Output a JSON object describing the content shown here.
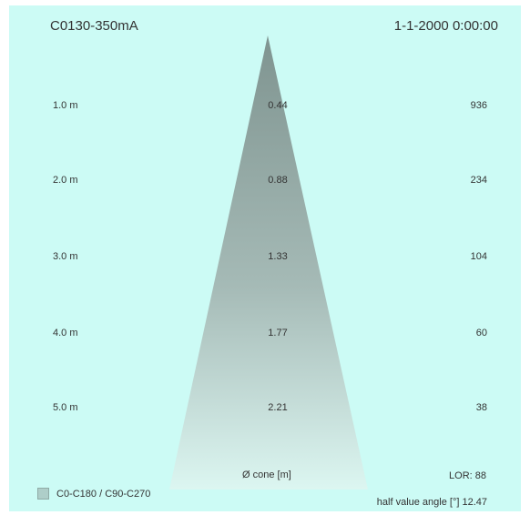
{
  "header": {
    "title": "C0130-350mA",
    "timestamp": "1-1-2000 0:00:00"
  },
  "chart_data": {
    "type": "cone",
    "rows": [
      {
        "distance": "1.0 m",
        "diameter": "0.44",
        "illuminance": "936"
      },
      {
        "distance": "2.0 m",
        "diameter": "0.88",
        "illuminance": "234"
      },
      {
        "distance": "3.0 m",
        "diameter": "1.33",
        "illuminance": "104"
      },
      {
        "distance": "4.0 m",
        "diameter": "1.77",
        "illuminance": "60"
      },
      {
        "distance": "5.0 m",
        "diameter": "2.21",
        "illuminance": "38"
      }
    ],
    "cone_axis_label": "Ø cone [m]",
    "lor": "LOR: 88",
    "half_value_angle": "half value angle [°] 12.47",
    "legend": "C0-C180 / C90-C270"
  },
  "colors": {
    "background": "#ccfbf5",
    "cone_top": "#7f9490",
    "cone_bottom": "#dcf6f1"
  }
}
